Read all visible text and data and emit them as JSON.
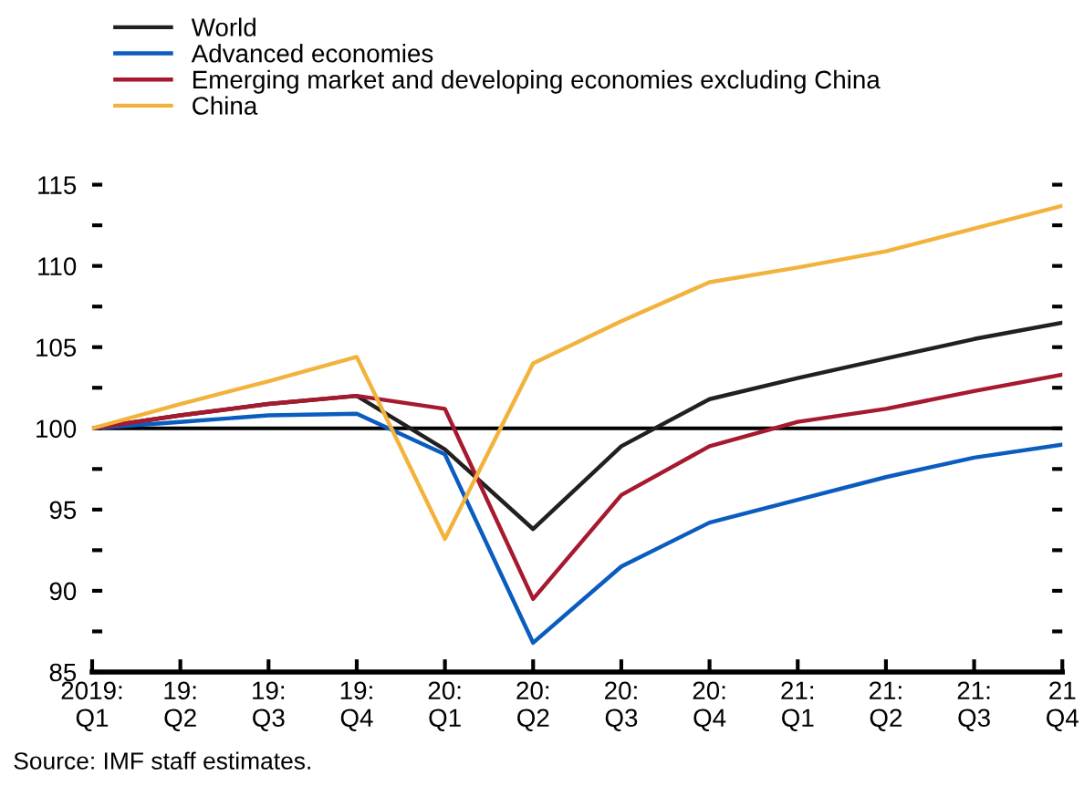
{
  "chart_data": {
    "type": "line",
    "categories": [
      "2019:\nQ1",
      "19:\nQ2",
      "19:\nQ3",
      "19:\nQ4",
      "20:\nQ1",
      "20:\nQ2",
      "20:\nQ3",
      "20:\nQ4",
      "21:\nQ1",
      "21:\nQ2",
      "21:\nQ3",
      "21\nQ4"
    ],
    "series": [
      {
        "name": "World",
        "color": "#231f20",
        "values": [
          100,
          100.8,
          101.5,
          102,
          98.7,
          93.8,
          98.9,
          101.8,
          103.1,
          104.3,
          105.5,
          106.5
        ]
      },
      {
        "name": "Advanced economies",
        "color": "#0a5cbf",
        "values": [
          100,
          100.4,
          100.8,
          100.9,
          98.4,
          86.8,
          91.5,
          94.2,
          95.6,
          97.0,
          98.2,
          99.0
        ]
      },
      {
        "name": "Emerging market and developing economies excluding China",
        "color": "#a6192e",
        "values": [
          100,
          100.8,
          101.5,
          102,
          101.2,
          89.5,
          95.9,
          98.9,
          100.4,
          101.2,
          102.3,
          103.3
        ]
      },
      {
        "name": "China",
        "color": "#f2b33d",
        "values": [
          100,
          101.5,
          102.9,
          104.4,
          93.2,
          104.0,
          106.6,
          109.0,
          109.9,
          110.9,
          112.3,
          113.7
        ]
      }
    ],
    "ylim": [
      85,
      115
    ],
    "yticks": [
      85,
      {
        "value": 87.5,
        "label": null
      },
      90,
      {
        "value": 92.5,
        "label": null
      },
      95,
      {
        "value": 97.5,
        "label": null
      },
      100,
      {
        "value": 102.5,
        "label": null
      },
      105,
      {
        "value": 107.5,
        "label": null
      },
      110,
      {
        "value": 112.5,
        "label": null
      },
      115
    ],
    "ref_lines": [
      {
        "axis": "y",
        "value": 100,
        "color": "#000000"
      }
    ],
    "legend": "top left",
    "grid": false,
    "marker": "none",
    "line_style": "solid",
    "annotations": [
      "Source: IMF staff estimates."
    ]
  }
}
